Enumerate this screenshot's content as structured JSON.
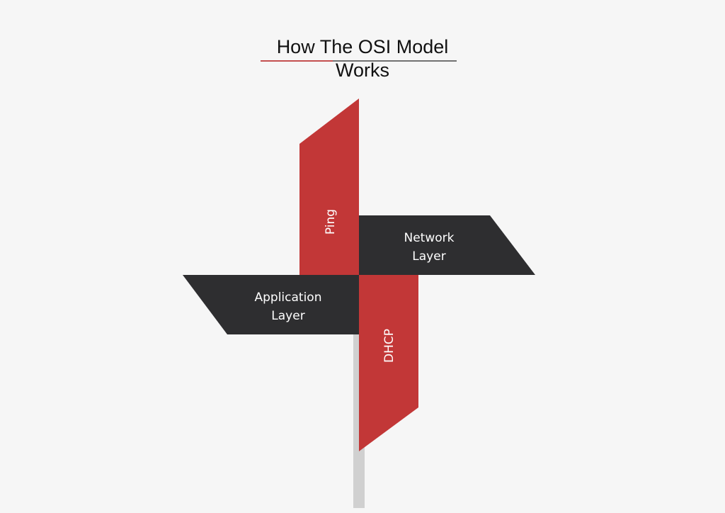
{
  "title": {
    "line1": "How The OSI Model",
    "line2": "Works"
  },
  "blades": {
    "top": "Ping",
    "right_line1": "Network",
    "right_line2": "Layer",
    "left_line1": "Application",
    "left_line2": "Layer",
    "bottom": "DHCP"
  },
  "colors": {
    "background": "#f6f6f6",
    "red": "#c23737",
    "dark": "#2e2e30",
    "pole": "#d0d0d0",
    "underline": "#c62b2b"
  }
}
